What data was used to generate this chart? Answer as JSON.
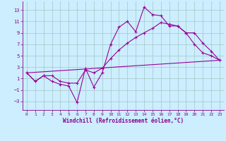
{
  "xlabel": "Windchill (Refroidissement éolien,°C)",
  "background_color": "#cceeff",
  "grid_color": "#aacccc",
  "line_color": "#990099",
  "xlim": [
    -0.5,
    23.5
  ],
  "ylim": [
    -4.5,
    14.5
  ],
  "yticks": [
    -3,
    -1,
    1,
    3,
    5,
    7,
    9,
    11,
    13
  ],
  "xticks": [
    0,
    1,
    2,
    3,
    4,
    5,
    6,
    7,
    8,
    9,
    10,
    11,
    12,
    13,
    14,
    15,
    16,
    17,
    18,
    19,
    20,
    21,
    22,
    23
  ],
  "line1_x": [
    0,
    1,
    2,
    3,
    4,
    5,
    6,
    7,
    8,
    9,
    10,
    11,
    12,
    13,
    14,
    15,
    16,
    17,
    18,
    19,
    20,
    21,
    22,
    23
  ],
  "line1_y": [
    2.0,
    0.5,
    1.5,
    0.5,
    0.0,
    -0.3,
    -3.2,
    2.8,
    -0.5,
    2.0,
    7.0,
    10.0,
    11.0,
    9.2,
    13.5,
    12.2,
    12.0,
    10.2,
    10.2,
    9.0,
    7.0,
    5.5,
    5.0,
    4.2
  ],
  "line2_x": [
    0,
    1,
    2,
    3,
    4,
    5,
    6,
    7,
    8,
    9,
    10,
    11,
    12,
    13,
    14,
    15,
    16,
    17,
    18,
    19,
    20,
    21,
    22,
    23
  ],
  "line2_y": [
    2.0,
    0.5,
    1.5,
    1.5,
    0.5,
    0.2,
    0.2,
    2.5,
    2.0,
    2.8,
    4.5,
    6.0,
    7.2,
    8.2,
    9.0,
    9.8,
    10.8,
    10.5,
    10.2,
    9.0,
    9.0,
    7.2,
    5.8,
    4.2
  ],
  "line3_x": [
    0,
    23
  ],
  "line3_y": [
    2.0,
    4.2
  ]
}
